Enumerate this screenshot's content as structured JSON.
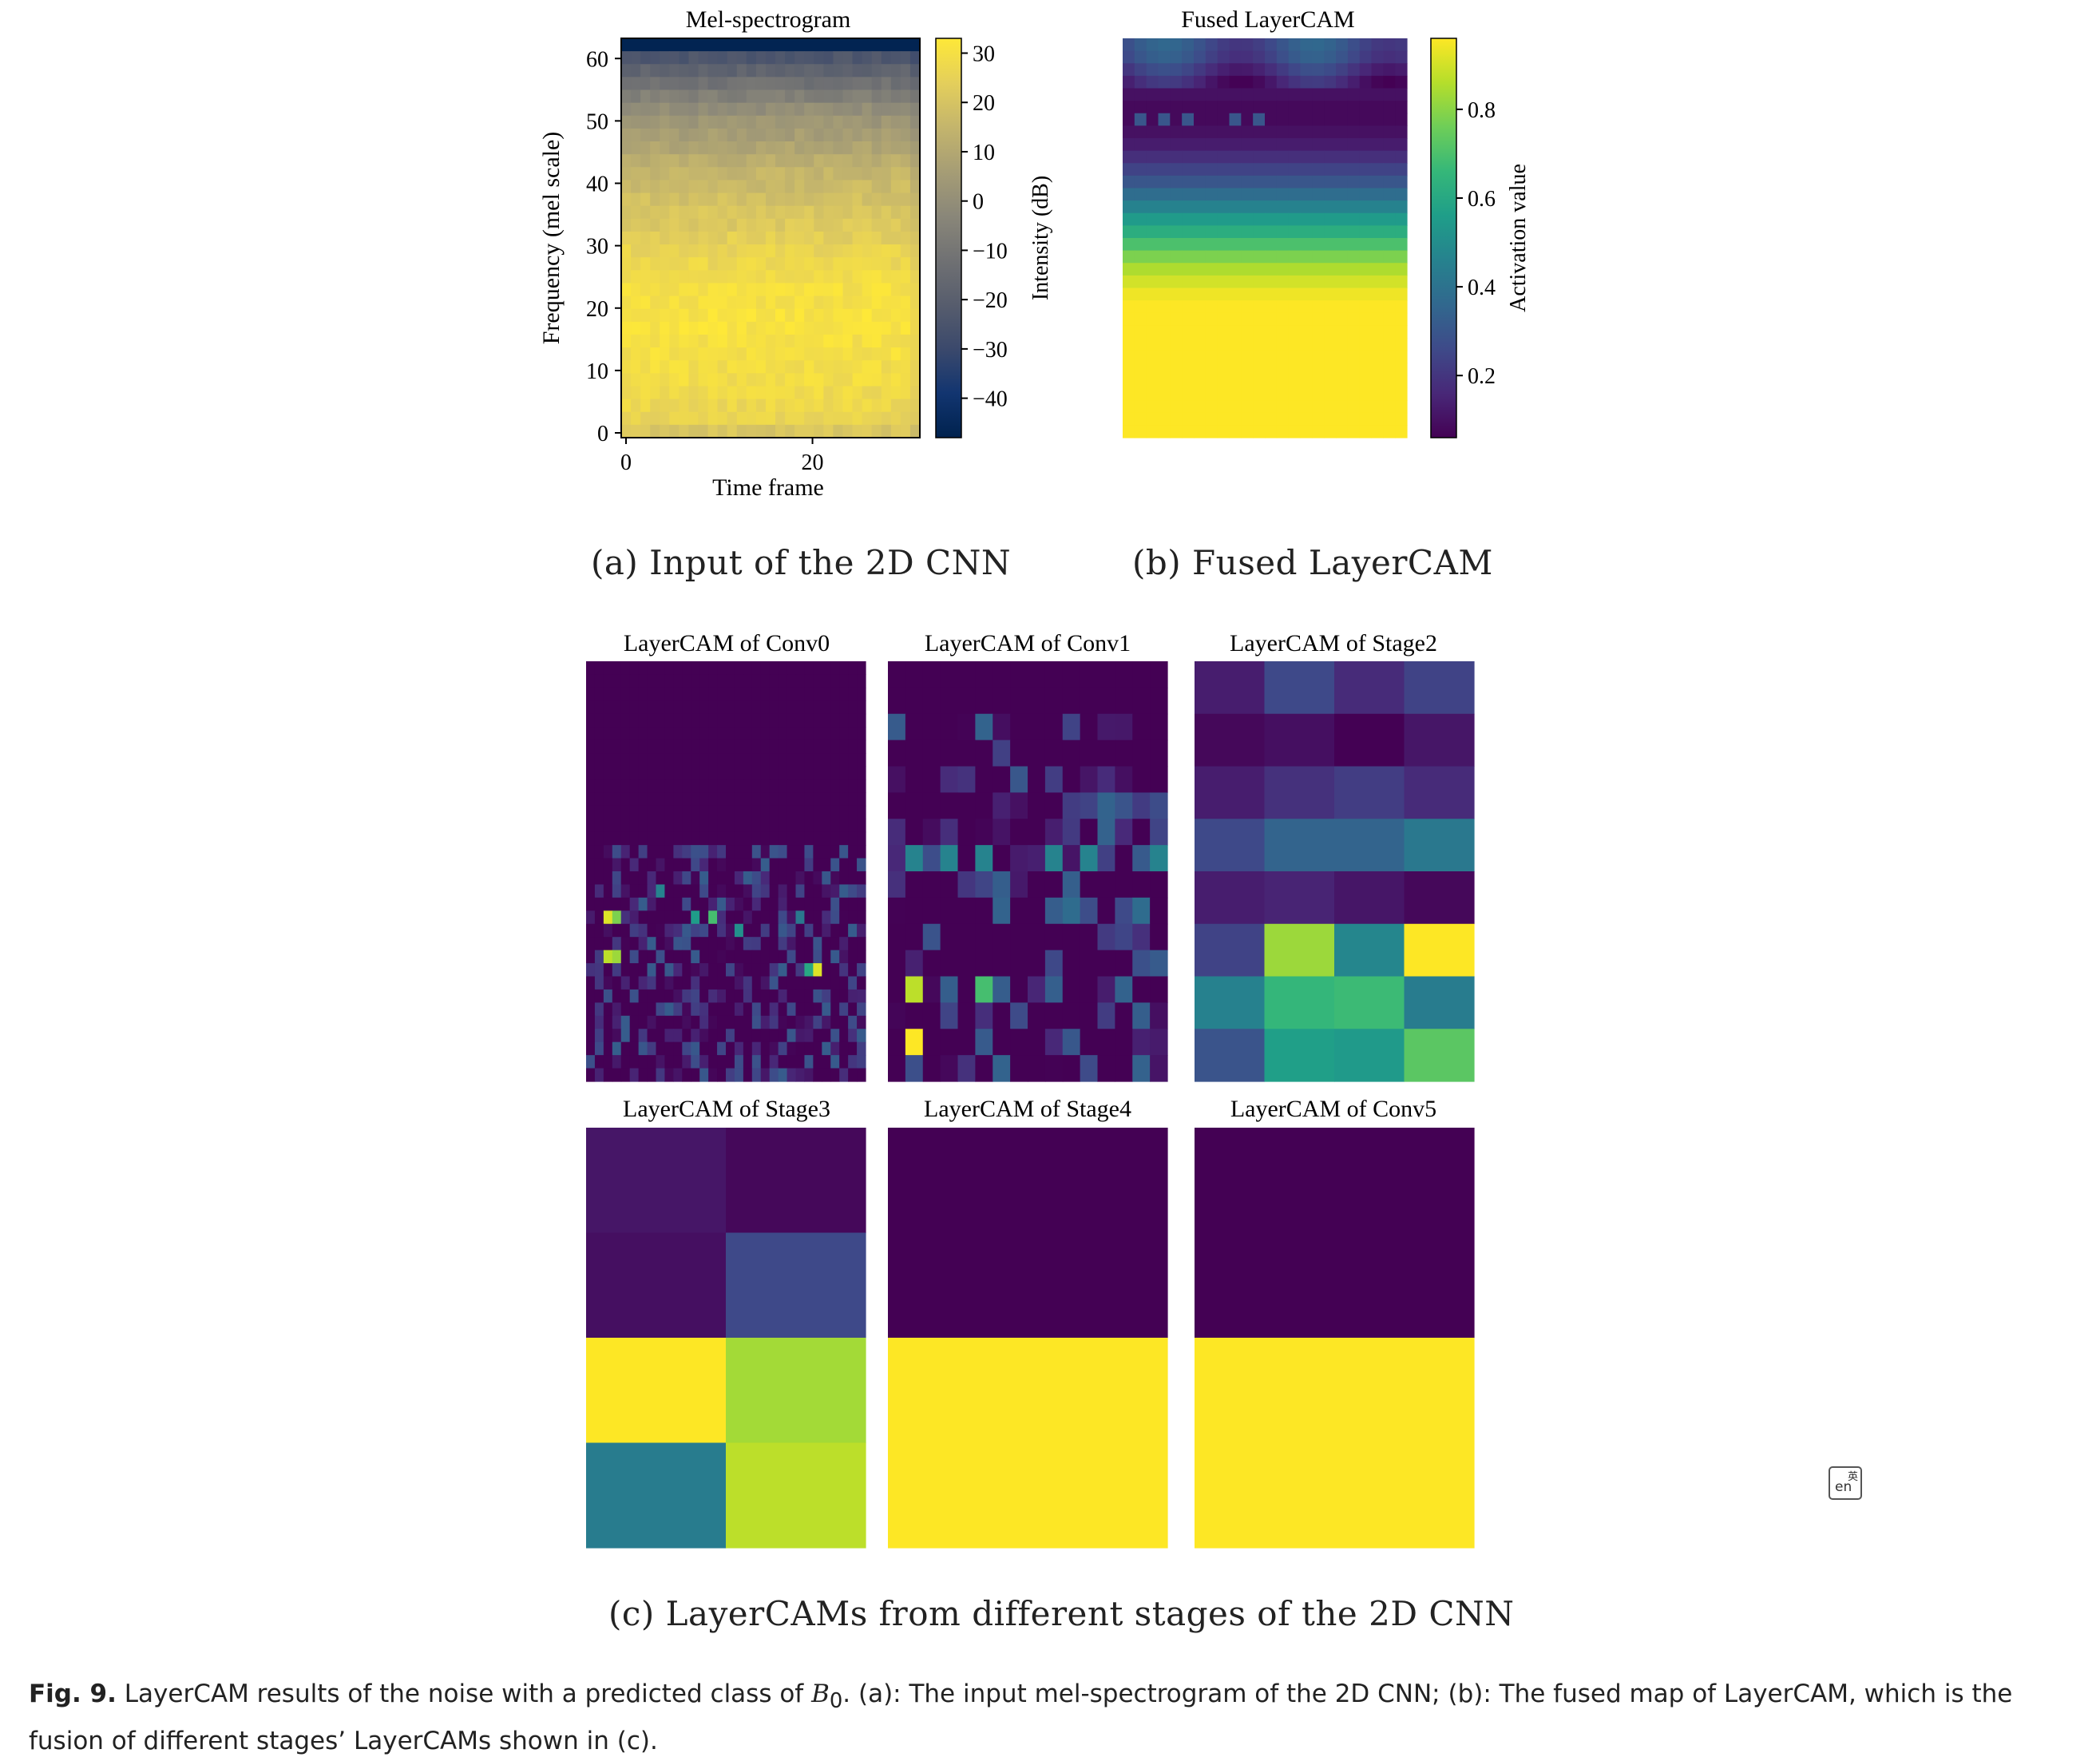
{
  "panel_a": {
    "caption": "(a) Input of the 2D CNN",
    "title": "Mel-spectrogram",
    "xlabel": "Time frame",
    "ylabel": "Frequency (mel scale)",
    "colorbar_label": "Intensity (dB)"
  },
  "panel_b": {
    "caption": "(b) Fused LayerCAM",
    "title": "Fused LayerCAM",
    "colorbar_label": "Activation value"
  },
  "panel_c": {
    "caption": "(c) LayerCAMs from different stages of the 2D CNN",
    "titles": [
      "LayerCAM of Conv0",
      "LayerCAM of Conv1",
      "LayerCAM of Stage2",
      "LayerCAM of Stage3",
      "LayerCAM of Stage4",
      "LayerCAM of Conv5"
    ]
  },
  "figure_caption": {
    "label": "Fig. 9.",
    "text_before": "LayerCAM results of the noise with a predicted class of ",
    "symbol": "B",
    "subscript": "0",
    "text_after": ". (a): The input mel-spectrogram of the 2D CNN; (b): The fused map of LayerCAM, which is the fusion of different stages’ LayerCAMs shown in (c)."
  },
  "colors": {
    "viridis": [
      "#440154",
      "#482878",
      "#3e4a89",
      "#31688e",
      "#26828e",
      "#1f9e89",
      "#35b779",
      "#6ece58",
      "#b5de2b",
      "#fde725"
    ],
    "cividis": [
      "#00224e",
      "#123570",
      "#3b496c",
      "#575d6d",
      "#707173",
      "#8a8779",
      "#a69d75",
      "#c4b56c",
      "#e4cf5b",
      "#fee838"
    ]
  },
  "icons": {
    "translate": "translate-icon"
  },
  "chart_data": [
    {
      "type": "heatmap",
      "title": "Mel-spectrogram",
      "xlabel": "Time frame",
      "ylabel": "Frequency (mel scale)",
      "x_ticks": [
        0,
        20
      ],
      "y_ticks": [
        0,
        10,
        20,
        30,
        40,
        50,
        60
      ],
      "xlim": [
        0,
        31
      ],
      "ylim": [
        0,
        64
      ],
      "colormap": "cividis",
      "colorbar": {
        "label": "Intensity (dB)",
        "ticks": [
          30,
          20,
          10,
          0,
          -10,
          -20,
          -30,
          -40
        ],
        "range": [
          -48,
          33
        ]
      },
      "row_intensity_db_bottom_to_top": [
        21,
        26,
        27,
        28,
        29,
        29,
        30,
        30,
        31,
        31,
        30,
        30,
        29,
        27,
        26,
        24,
        22,
        21,
        19,
        17,
        15,
        12,
        9,
        6,
        3,
        0,
        -6,
        -12,
        -18,
        -24,
        -47
      ]
    },
    {
      "type": "heatmap",
      "title": "Fused LayerCAM",
      "colormap": "viridis",
      "colorbar": {
        "label": "Activation value",
        "ticks": [
          0.8,
          0.6,
          0.4,
          0.2
        ],
        "range": [
          0.06,
          0.96
        ]
      },
      "row_activation_top_to_bottom": [
        0.28,
        0.26,
        0.2,
        0.14,
        0.1,
        0.08,
        0.08,
        0.1,
        0.13,
        0.18,
        0.24,
        0.3,
        0.38,
        0.46,
        0.55,
        0.62,
        0.7,
        0.78,
        0.85,
        0.9,
        0.94,
        0.96,
        0.96,
        0.96,
        0.96,
        0.96,
        0.96,
        0.96,
        0.96,
        0.96,
        0.96,
        0.96
      ]
    },
    {
      "type": "heatmap",
      "title": "LayerCAM of Conv0",
      "colormap": "viridis",
      "rows": 32,
      "cols": 32,
      "hotspots": [
        [
          19,
          2,
          0.95
        ],
        [
          19,
          3,
          0.8
        ],
        [
          19,
          12,
          0.55
        ],
        [
          19,
          14,
          0.7
        ],
        [
          17,
          8,
          0.45
        ],
        [
          22,
          2,
          0.9
        ],
        [
          22,
          3,
          0.85
        ],
        [
          23,
          26,
          0.95
        ],
        [
          23,
          25,
          0.6
        ],
        [
          20,
          17,
          0.5
        ],
        [
          19,
          24,
          0.4
        ]
      ]
    },
    {
      "type": "heatmap",
      "title": "LayerCAM of Conv1",
      "colormap": "viridis",
      "rows": 16,
      "cols": 16,
      "hotspots": [
        [
          12,
          1,
          0.9
        ],
        [
          12,
          5,
          0.7
        ],
        [
          14,
          1,
          1.0
        ],
        [
          7,
          1,
          0.45
        ],
        [
          7,
          3,
          0.45
        ],
        [
          7,
          5,
          0.45
        ],
        [
          7,
          9,
          0.45
        ],
        [
          7,
          11,
          0.45
        ],
        [
          7,
          15,
          0.45
        ],
        [
          9,
          10,
          0.35
        ],
        [
          9,
          14,
          0.35
        ],
        [
          12,
          9,
          0.3
        ]
      ]
    },
    {
      "type": "heatmap",
      "title": "LayerCAM of Stage2",
      "colormap": "viridis",
      "values": [
        [
          0.08,
          0.22,
          0.12,
          0.2
        ],
        [
          0.02,
          0.04,
          0.0,
          0.06
        ],
        [
          0.08,
          0.14,
          0.18,
          0.12
        ],
        [
          0.22,
          0.32,
          0.32,
          0.4
        ],
        [
          0.08,
          0.1,
          0.06,
          0.02
        ],
        [
          0.2,
          0.85,
          0.46,
          1.0
        ],
        [
          0.44,
          0.66,
          0.68,
          0.42
        ],
        [
          0.26,
          0.56,
          0.54,
          0.74
        ]
      ]
    },
    {
      "type": "heatmap",
      "title": "LayerCAM of Stage3",
      "colormap": "viridis",
      "values": [
        [
          0.06,
          0.02
        ],
        [
          0.04,
          0.22
        ],
        [
          1.0,
          0.86
        ],
        [
          0.42,
          0.9
        ]
      ]
    },
    {
      "type": "heatmap",
      "title": "LayerCAM of Stage4",
      "colormap": "viridis",
      "values": [
        [
          0.0
        ],
        [
          1.0
        ]
      ]
    },
    {
      "type": "heatmap",
      "title": "LayerCAM of Conv5",
      "colormap": "viridis",
      "values": [
        [
          0.0
        ],
        [
          1.0
        ]
      ]
    }
  ]
}
